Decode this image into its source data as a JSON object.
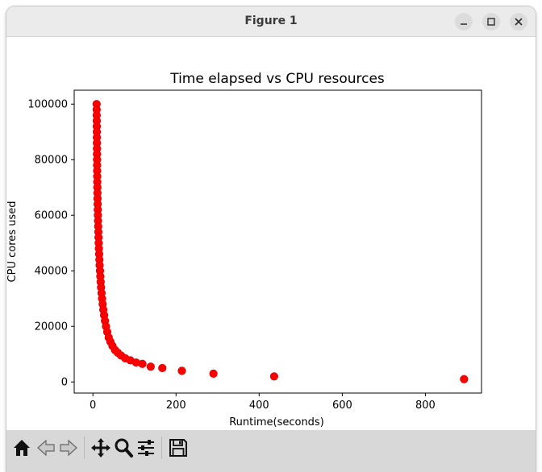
{
  "window": {
    "title": "Figure 1",
    "buttons": [
      "minimize",
      "maximize",
      "close"
    ]
  },
  "toolbar": {
    "icons": [
      "home-icon",
      "back-arrow-icon",
      "forward-arrow-icon",
      "pan-icon",
      "zoom-icon",
      "configure-subplots-icon",
      "save-icon"
    ]
  },
  "colors": {
    "marker": "#ff0000",
    "marker_edge": "#d40000",
    "titlebar": "#ebebeb",
    "toolbar": "#d8d8d8"
  },
  "chart_data": {
    "type": "scatter",
    "title": "Time elapsed vs CPU resources",
    "xlabel": "Runtime(seconds)",
    "ylabel": "CPU cores used",
    "xlim": [
      -45,
      935
    ],
    "ylim": [
      -4000,
      105000
    ],
    "xticks": [
      0,
      200,
      400,
      600,
      800
    ],
    "yticks": [
      0,
      20000,
      40000,
      60000,
      80000,
      100000
    ],
    "grid": false,
    "series": [
      {
        "marker": "circle",
        "color": "#ff0000",
        "x": [
          8.9,
          9.0,
          9.1,
          9.2,
          9.3,
          9.4,
          9.5,
          9.6,
          9.7,
          9.8,
          9.9,
          10.0,
          10.1,
          10.3,
          10.5,
          10.7,
          10.9,
          11.1,
          11.4,
          11.7,
          12.0,
          12.3,
          12.7,
          13.1,
          13.5,
          13.9,
          14.4,
          15.0,
          15.6,
          16.2,
          17.0,
          17.8,
          18.7,
          19.6,
          20.8,
          22.0,
          23.5,
          25.0,
          27.0,
          29.0,
          31.5,
          34.5,
          38.0,
          42.0,
          47.0,
          53.0,
          60.0,
          68.0,
          78.0,
          90.0,
          104.0,
          119.0,
          139.0,
          167.0,
          214.0,
          290.0,
          436.0,
          893.0
        ],
        "y": [
          100000,
          98000,
          96000,
          94000,
          92000,
          90000,
          88000,
          86000,
          84000,
          82000,
          80000,
          78000,
          76000,
          74000,
          72000,
          70000,
          68000,
          66000,
          64000,
          62000,
          60000,
          58000,
          56000,
          54000,
          52000,
          50000,
          48000,
          46000,
          44000,
          42000,
          40000,
          38000,
          36000,
          34000,
          32000,
          30000,
          28000,
          26000,
          24000,
          22000,
          20000,
          18000,
          16000,
          14500,
          13000,
          11500,
          10500,
          9500,
          8500,
          7800,
          7000,
          6500,
          5500,
          5000,
          4000,
          3000,
          2000,
          1000
        ]
      }
    ]
  }
}
